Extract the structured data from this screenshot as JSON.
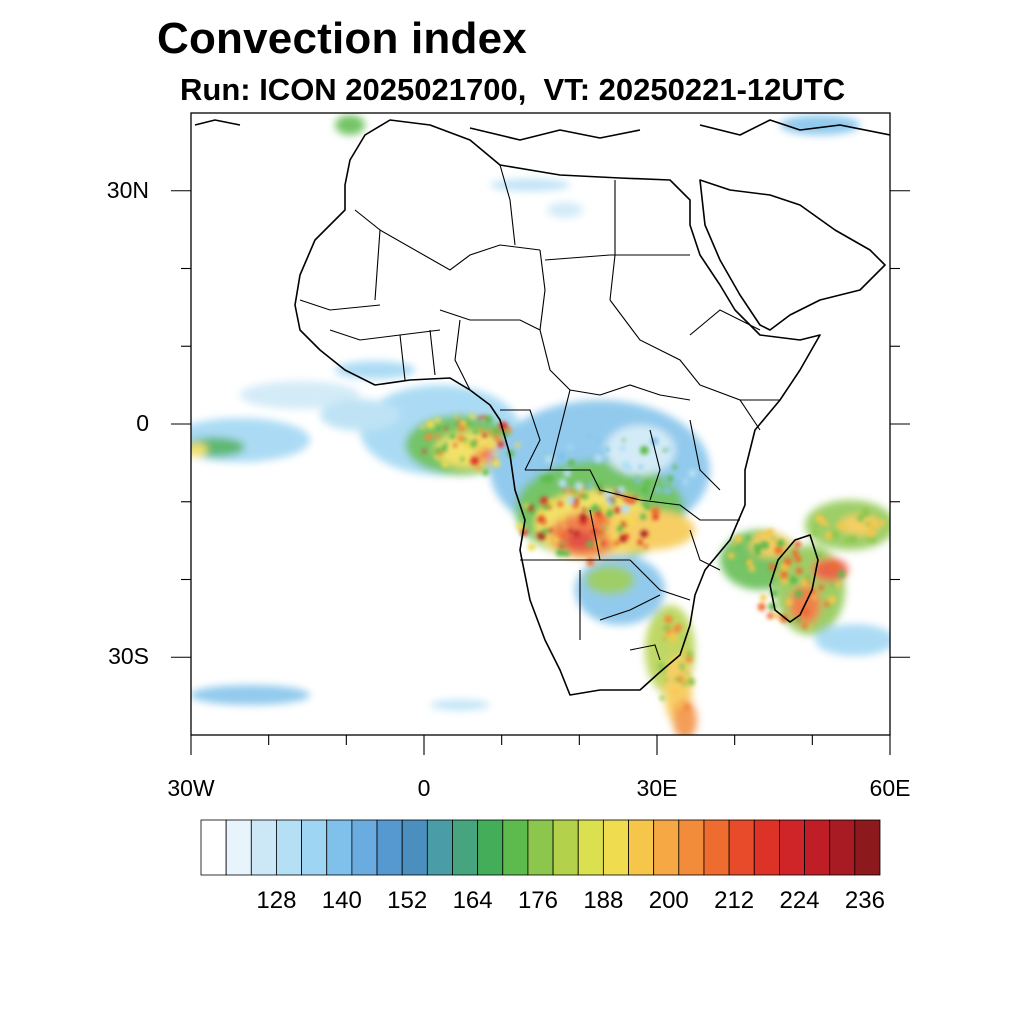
{
  "header": {
    "title": "Convection index",
    "subtitle": "Run: ICON 2025021700,  VT: 20250221-12UTC"
  },
  "map": {
    "lon_range": [
      -30,
      60
    ],
    "lat_range": [
      -40,
      40
    ],
    "lat_ticks": [
      {
        "value": 30,
        "label": "30N"
      },
      {
        "value": 0,
        "label": "0"
      },
      {
        "value": -30,
        "label": "30S"
      }
    ],
    "lon_ticks": [
      {
        "value": -30,
        "label": "30W"
      },
      {
        "value": 0,
        "label": "0"
      },
      {
        "value": 30,
        "label": "30E"
      },
      {
        "value": 60,
        "label": "60E"
      }
    ]
  },
  "colorbar": {
    "colors": [
      "#ffffff",
      "#e8f4fc",
      "#cce8f6",
      "#b4dff4",
      "#9dd5f3",
      "#7fc1ea",
      "#6aabe0",
      "#5699d1",
      "#4b8fbf",
      "#4a9ca6",
      "#46a57f",
      "#43ad5a",
      "#5dba4c",
      "#8cc64d",
      "#b4d14b",
      "#dbe04f",
      "#f0dc4f",
      "#f6c64a",
      "#f5a843",
      "#f28c3a",
      "#ee6c2f",
      "#e74b2a",
      "#dd3228",
      "#cf2529",
      "#bf1e27",
      "#a81b23",
      "#8c1a1d"
    ],
    "labels": [
      "128",
      "140",
      "152",
      "164",
      "176",
      "188",
      "200",
      "212",
      "224",
      "236"
    ]
  },
  "features": {
    "convection_color_low": "#6aabe0",
    "convection_color_mid": "#43ad5a",
    "convection_color_high": "#f0dc4f",
    "convection_color_max": "#dd3228"
  }
}
